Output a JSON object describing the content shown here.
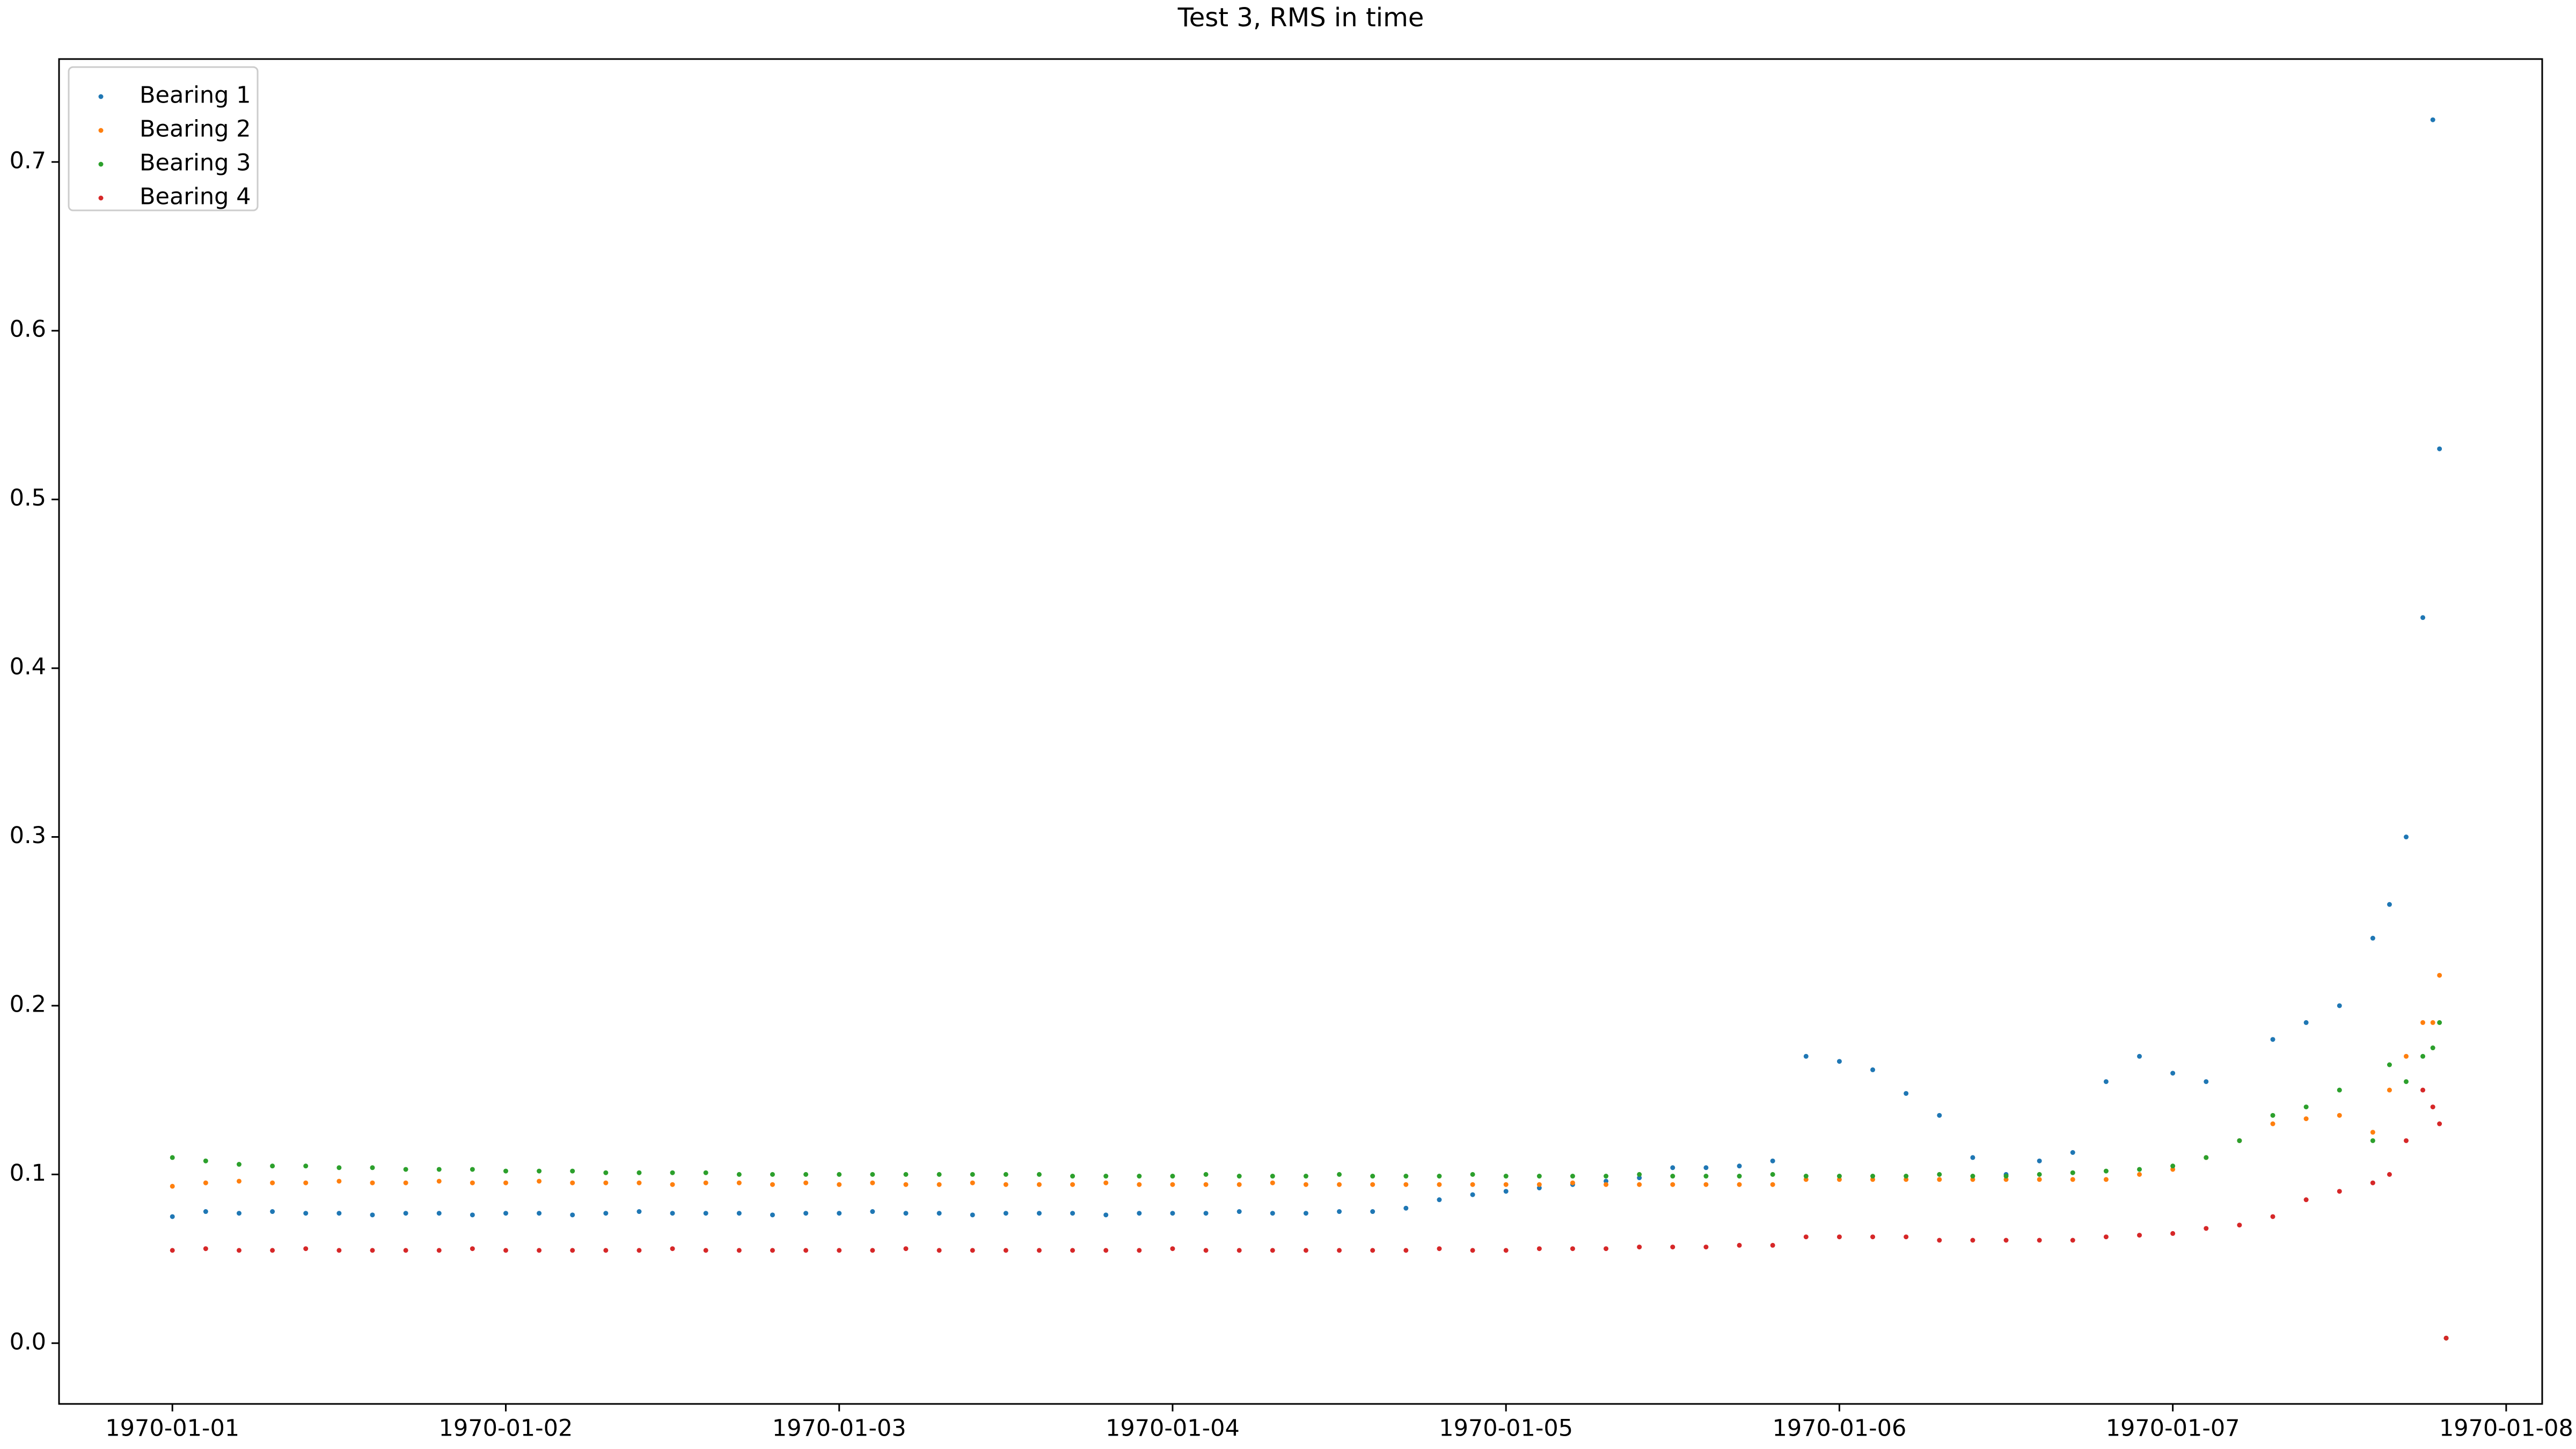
{
  "chart_data": {
    "type": "scatter",
    "title": "Test 3, RMS in time",
    "x": [
      0,
      0.1,
      0.2,
      0.3,
      0.4,
      0.5,
      0.6,
      0.7,
      0.8,
      0.9,
      1.0,
      1.1,
      1.2,
      1.3,
      1.4,
      1.5,
      1.6,
      1.7,
      1.8,
      1.9,
      2.0,
      2.1,
      2.2,
      2.3,
      2.4,
      2.5,
      2.6,
      2.7,
      2.8,
      2.9,
      3.0,
      3.1,
      3.2,
      3.3,
      3.4,
      3.5,
      3.6,
      3.7,
      3.8,
      3.9,
      4.0,
      4.1,
      4.2,
      4.3,
      4.4,
      4.5,
      4.6,
      4.7,
      4.8,
      4.9,
      5.0,
      5.1,
      5.2,
      5.3,
      5.4,
      5.5,
      5.6,
      5.7,
      5.8,
      5.9,
      6.0,
      6.1,
      6.2,
      6.3,
      6.4,
      6.5,
      6.6,
      6.65,
      6.7,
      6.75,
      6.78,
      6.8,
      6.82
    ],
    "series": [
      {
        "name": "Bearing 1",
        "color": "#1f77b4",
        "values": [
          0.075,
          0.078,
          0.077,
          0.078,
          0.077,
          0.077,
          0.076,
          0.077,
          0.077,
          0.076,
          0.077,
          0.077,
          0.076,
          0.077,
          0.078,
          0.077,
          0.077,
          0.077,
          0.076,
          0.077,
          0.077,
          0.078,
          0.077,
          0.077,
          0.076,
          0.077,
          0.077,
          0.077,
          0.076,
          0.077,
          0.077,
          0.077,
          0.078,
          0.077,
          0.077,
          0.078,
          0.078,
          0.08,
          0.085,
          0.088,
          0.09,
          0.092,
          0.094,
          0.096,
          0.098,
          0.104,
          0.104,
          0.105,
          0.108,
          0.17,
          0.167,
          0.162,
          0.148,
          0.135,
          0.11,
          0.1,
          0.108,
          0.113,
          0.155,
          0.17,
          0.16,
          0.155,
          0.12,
          0.18,
          0.19,
          0.2,
          0.24,
          0.26,
          0.3,
          0.43,
          0.725,
          0.53,
          0.003
        ]
      },
      {
        "name": "Bearing 2",
        "color": "#ff7f0e",
        "values": [
          0.093,
          0.095,
          0.096,
          0.095,
          0.095,
          0.096,
          0.095,
          0.095,
          0.096,
          0.095,
          0.095,
          0.096,
          0.095,
          0.095,
          0.095,
          0.094,
          0.095,
          0.095,
          0.094,
          0.095,
          0.094,
          0.095,
          0.094,
          0.094,
          0.095,
          0.094,
          0.094,
          0.094,
          0.095,
          0.094,
          0.094,
          0.094,
          0.094,
          0.095,
          0.094,
          0.094,
          0.094,
          0.094,
          0.094,
          0.094,
          0.094,
          0.094,
          0.095,
          0.094,
          0.094,
          0.094,
          0.094,
          0.094,
          0.094,
          0.097,
          0.097,
          0.097,
          0.097,
          0.097,
          0.097,
          0.097,
          0.097,
          0.097,
          0.097,
          0.1,
          0.103,
          0.11,
          0.12,
          0.13,
          0.133,
          0.135,
          0.125,
          0.15,
          0.17,
          0.19,
          0.19,
          0.218,
          0.003
        ]
      },
      {
        "name": "Bearing 3",
        "color": "#2ca02c",
        "values": [
          0.11,
          0.108,
          0.106,
          0.105,
          0.105,
          0.104,
          0.104,
          0.103,
          0.103,
          0.103,
          0.102,
          0.102,
          0.102,
          0.101,
          0.101,
          0.101,
          0.101,
          0.1,
          0.1,
          0.1,
          0.1,
          0.1,
          0.1,
          0.1,
          0.1,
          0.1,
          0.1,
          0.099,
          0.099,
          0.099,
          0.099,
          0.1,
          0.099,
          0.099,
          0.099,
          0.1,
          0.099,
          0.099,
          0.099,
          0.1,
          0.099,
          0.099,
          0.099,
          0.099,
          0.1,
          0.099,
          0.099,
          0.099,
          0.1,
          0.099,
          0.099,
          0.099,
          0.099,
          0.1,
          0.099,
          0.099,
          0.1,
          0.101,
          0.102,
          0.103,
          0.105,
          0.11,
          0.12,
          0.135,
          0.14,
          0.15,
          0.12,
          0.165,
          0.155,
          0.17,
          0.175,
          0.19,
          0.003
        ]
      },
      {
        "name": "Bearing 4",
        "color": "#d62728",
        "values": [
          0.055,
          0.056,
          0.055,
          0.055,
          0.056,
          0.055,
          0.055,
          0.055,
          0.055,
          0.056,
          0.055,
          0.055,
          0.055,
          0.055,
          0.055,
          0.056,
          0.055,
          0.055,
          0.055,
          0.055,
          0.055,
          0.055,
          0.056,
          0.055,
          0.055,
          0.055,
          0.055,
          0.055,
          0.055,
          0.055,
          0.056,
          0.055,
          0.055,
          0.055,
          0.055,
          0.055,
          0.055,
          0.055,
          0.056,
          0.055,
          0.055,
          0.056,
          0.056,
          0.056,
          0.057,
          0.057,
          0.057,
          0.058,
          0.058,
          0.063,
          0.063,
          0.063,
          0.063,
          0.061,
          0.061,
          0.061,
          0.061,
          0.061,
          0.063,
          0.064,
          0.065,
          0.068,
          0.07,
          0.075,
          0.085,
          0.09,
          0.095,
          0.1,
          0.12,
          0.15,
          0.14,
          0.13,
          0.003
        ]
      }
    ],
    "xlim": [
      -0.34,
      7.108
    ],
    "xticks": [
      {
        "value": 0,
        "label": "1970-01-01"
      },
      {
        "value": 1,
        "label": "1970-01-02"
      },
      {
        "value": 2,
        "label": "1970-01-03"
      },
      {
        "value": 3,
        "label": "1970-01-04"
      },
      {
        "value": 4,
        "label": "1970-01-05"
      },
      {
        "value": 5,
        "label": "1970-01-06"
      },
      {
        "value": 6,
        "label": "1970-01-07"
      },
      {
        "value": 7,
        "label": "1970-01-08"
      }
    ],
    "ylim": [
      -0.036,
      0.761
    ],
    "yticks": [
      {
        "value": 0,
        "label": "0.0"
      },
      0.1,
      0.2,
      0.3,
      0.4,
      0.5,
      0.6,
      0.7
    ],
    "grid": false,
    "legend": "upper left"
  }
}
